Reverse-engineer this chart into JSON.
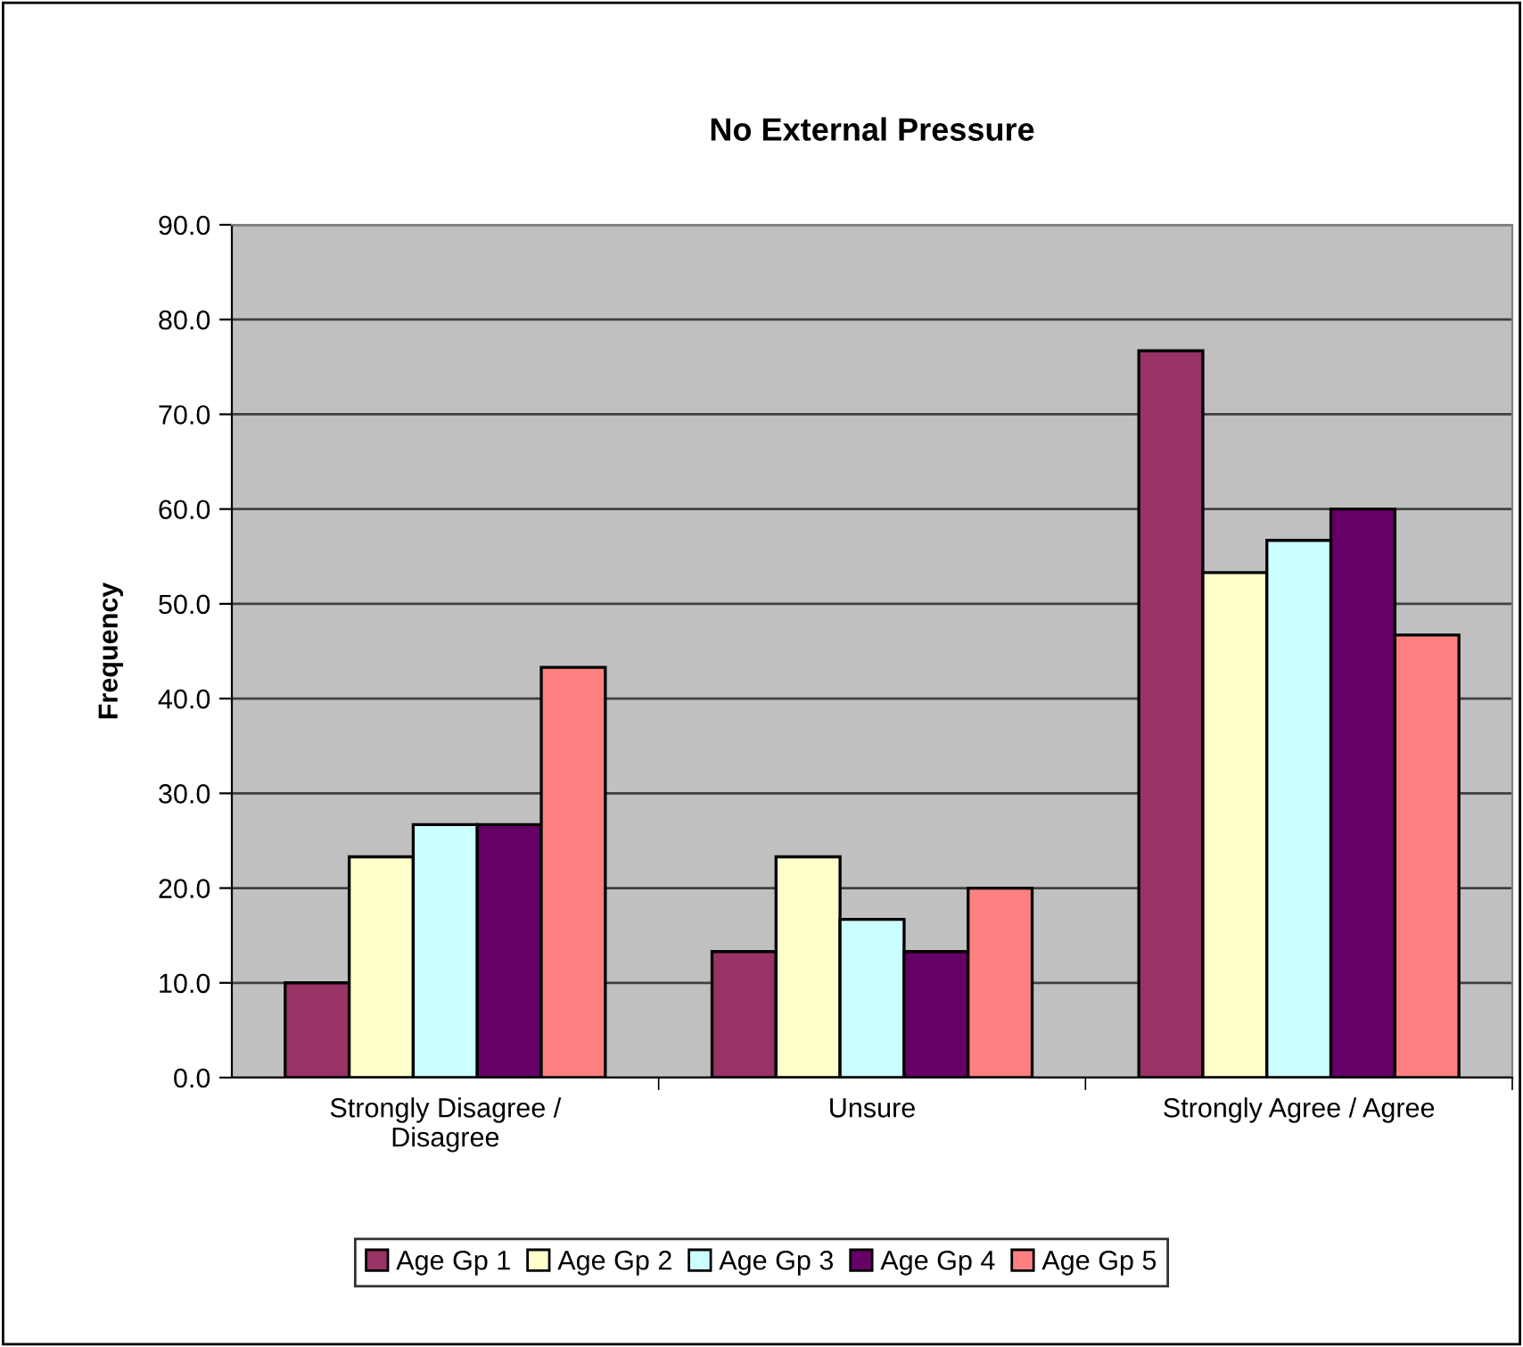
{
  "chart_data": {
    "type": "bar",
    "title": "No External Pressure",
    "ylabel": "Frequency",
    "categories": [
      "Strongly Disagree /\nDisagree",
      "Unsure",
      "Strongly Agree / Agree"
    ],
    "series": [
      {
        "name": "Age Gp 1",
        "color": "#993366",
        "values": [
          10.0,
          13.3,
          76.7
        ]
      },
      {
        "name": "Age Gp 2",
        "color": "#ffffcc",
        "values": [
          23.3,
          23.3,
          53.3
        ]
      },
      {
        "name": "Age Gp 3",
        "color": "#ccffff",
        "values": [
          26.7,
          16.7,
          56.7
        ]
      },
      {
        "name": "Age Gp 4",
        "color": "#660066",
        "values": [
          26.7,
          13.3,
          60.0
        ]
      },
      {
        "name": "Age Gp 5",
        "color": "#ff8080",
        "values": [
          43.3,
          20.0,
          46.7
        ]
      }
    ],
    "ylim": [
      0,
      90
    ],
    "yticks": [
      {
        "value": 0,
        "label": "0.0"
      },
      {
        "value": 10,
        "label": "10.0"
      },
      {
        "value": 20,
        "label": "20.0"
      },
      {
        "value": 30,
        "label": "30.0"
      },
      {
        "value": 40,
        "label": "40.0"
      },
      {
        "value": 50,
        "label": "50.0"
      },
      {
        "value": 60,
        "label": "60.0"
      },
      {
        "value": 70,
        "label": "70.0"
      },
      {
        "value": 80,
        "label": "80.0"
      },
      {
        "value": 90,
        "label": "90.0"
      }
    ],
    "grid": "y",
    "legend": "bottom"
  }
}
